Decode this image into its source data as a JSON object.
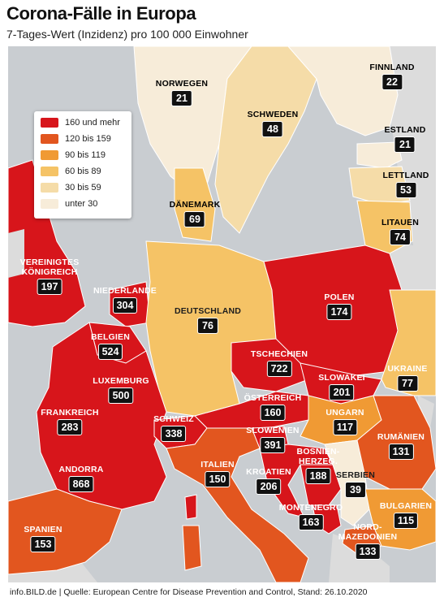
{
  "title": "Corona-Fälle in Europa",
  "subtitle": "7-Tages-Wert (Inzidenz) pro 100 000 Einwohner",
  "footer": "info.BILD.de | Quelle: European Centre for Disease Prevention and Control, Stand: 26.10.2020",
  "colors": {
    "sea": "#c9cdd1",
    "nonData": "#dcdcdc",
    "red": "#d7151b",
    "orangeRed": "#e2561f",
    "orange": "#f09a34",
    "gold": "#f5c366",
    "beige": "#f5dca8",
    "cream": "#f7ecd9"
  },
  "legend": [
    {
      "label": "160 und mehr",
      "color": "#d7151b"
    },
    {
      "label": "120 bis 159",
      "color": "#e2561f"
    },
    {
      "label": "90 bis 119",
      "color": "#f09a34"
    },
    {
      "label": "60 bis 89",
      "color": "#f5c366"
    },
    {
      "label": "30 bis 59",
      "color": "#f5dca8"
    },
    {
      "label": "unter 30",
      "color": "#f7ecd9"
    }
  ],
  "countries": [
    {
      "id": "finnland",
      "name": "FINNLAND",
      "value": "22",
      "theme": "dark"
    },
    {
      "id": "norwegen",
      "name": "NORWEGEN",
      "value": "21",
      "theme": "dark"
    },
    {
      "id": "schweden",
      "name": "SCHWEDEN",
      "value": "48",
      "theme": "dark"
    },
    {
      "id": "estland",
      "name": "ESTLAND",
      "value": "21",
      "theme": "dark"
    },
    {
      "id": "lettland",
      "name": "LETTLAND",
      "value": "53",
      "theme": "dark"
    },
    {
      "id": "daenemark",
      "name": "DÄNEMARK",
      "value": "69",
      "theme": "dark"
    },
    {
      "id": "litauen",
      "name": "LITAUEN",
      "value": "74",
      "theme": "dark"
    },
    {
      "id": "uk",
      "name": "VEREINIGTES\nKÖNIGREICH",
      "value": "197",
      "theme": "light"
    },
    {
      "id": "niederlande",
      "name": "NIEDERLANDE",
      "value": "304",
      "theme": "light"
    },
    {
      "id": "polen",
      "name": "POLEN",
      "value": "174",
      "theme": "light"
    },
    {
      "id": "deutschland",
      "name": "DEUTSCHLAND",
      "value": "76",
      "theme": "dark"
    },
    {
      "id": "belgien",
      "name": "BELGIEN",
      "value": "524",
      "theme": "light"
    },
    {
      "id": "tschechien",
      "name": "TSCHECHIEN",
      "value": "722",
      "theme": "light"
    },
    {
      "id": "luxemburg",
      "name": "LUXEMBURG",
      "value": "500",
      "theme": "light"
    },
    {
      "id": "slowakei",
      "name": "SLOWAKEI",
      "value": "201",
      "theme": "light"
    },
    {
      "id": "ukraine",
      "name": "UKRAINE",
      "value": "77",
      "theme": "light"
    },
    {
      "id": "frankreich",
      "name": "FRANKREICH",
      "value": "283",
      "theme": "light"
    },
    {
      "id": "oesterreich",
      "name": "ÖSTERREICH",
      "value": "160",
      "theme": "light"
    },
    {
      "id": "schweiz",
      "name": "SCHWEIZ",
      "value": "338",
      "theme": "light"
    },
    {
      "id": "ungarn",
      "name": "UNGARN",
      "value": "117",
      "theme": "light"
    },
    {
      "id": "rumaenien",
      "name": "RUMÄNIEN",
      "value": "131",
      "theme": "light"
    },
    {
      "id": "slowenien",
      "name": "SLOWENIEN",
      "value": "391",
      "theme": "light"
    },
    {
      "id": "bosnien",
      "name": "BOSNIEN-\nHERZEG.",
      "value": "188",
      "theme": "light"
    },
    {
      "id": "italien",
      "name": "ITALIEN",
      "value": "150",
      "theme": "light"
    },
    {
      "id": "kroatien",
      "name": "KROATIEN",
      "value": "206",
      "theme": "light"
    },
    {
      "id": "serbien",
      "name": "SERBIEN",
      "value": "39",
      "theme": "dark"
    },
    {
      "id": "andorra",
      "name": "ANDORRA",
      "value": "868",
      "theme": "light"
    },
    {
      "id": "montenegro",
      "name": "MONTENEGRO",
      "value": "163",
      "theme": "light"
    },
    {
      "id": "bulgarien",
      "name": "BULGARIEN",
      "value": "115",
      "theme": "light"
    },
    {
      "id": "spanien",
      "name": "SPANIEN",
      "value": "153",
      "theme": "light"
    },
    {
      "id": "nordmazedonien",
      "name": "NORD-\nMAZEDONIEN",
      "value": "133",
      "theme": "light"
    }
  ]
}
